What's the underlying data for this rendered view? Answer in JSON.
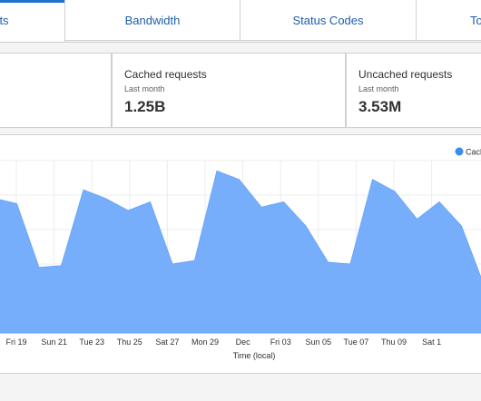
{
  "tabs": [
    {
      "label": "ts",
      "active": true
    },
    {
      "label": "Bandwidth",
      "active": false
    },
    {
      "label": "Status Codes",
      "active": false
    },
    {
      "label": "To",
      "active": false
    }
  ],
  "cards": [
    {
      "title": "Cached requests",
      "subtitle": "Last month",
      "value": "1.25B"
    },
    {
      "title": "Uncached requests",
      "subtitle": "Last month",
      "value": "3.53M"
    }
  ],
  "colors": {
    "accent": "#1f6fcf",
    "area": "#77aefc",
    "legend_dot": "#3c8cf0",
    "link": "#1f5dab"
  },
  "chart_data": {
    "type": "area",
    "legend": [
      "Cach"
    ],
    "xlabel": "Time (local)",
    "tick_labels": [
      "Fri 19",
      "Sun 21",
      "Tue 23",
      "Thu 25",
      "Sat 27",
      "Mon 29",
      "Dec",
      "Fri 03",
      "Sun 05",
      "Tue 07",
      "Thu 09",
      "Sat 1"
    ],
    "ylim": [
      0,
      100
    ],
    "series": [
      {
        "name": "Cach",
        "values": [
          78,
          75,
          38,
          39,
          83,
          78,
          71,
          76,
          40,
          42,
          94,
          89,
          73,
          76,
          62,
          41,
          40,
          89,
          82,
          66,
          76,
          62,
          28
        ]
      }
    ]
  }
}
